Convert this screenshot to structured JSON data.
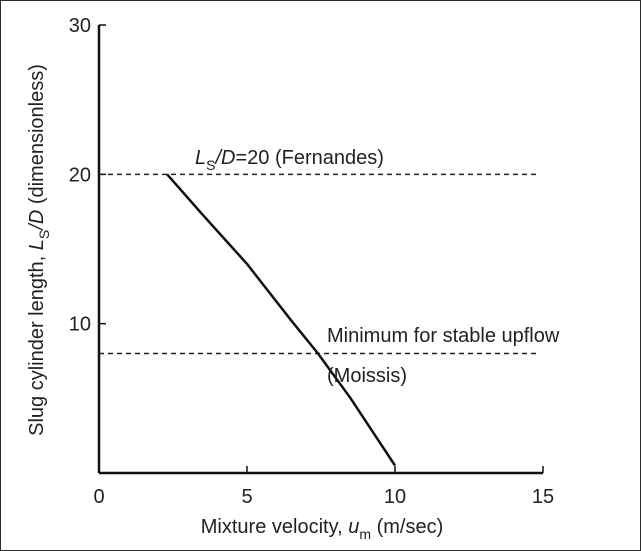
{
  "chart_data": {
    "type": "line",
    "xlabel": {
      "prefix": "Mixture velocity, ",
      "symbol": "u",
      "sub": "m",
      "suffix": " (m/sec)"
    },
    "ylabel": {
      "prefix": "Slug cylinder length, ",
      "sym1": "L",
      "sub": "S",
      "sym2": "/D",
      "suffix": " (dimensionless)"
    },
    "xlim": [
      0,
      15
    ],
    "ylim": [
      0,
      30
    ],
    "xticks": [
      0,
      5,
      10,
      15
    ],
    "yticks": [
      10,
      20,
      30
    ],
    "grid": false,
    "series": [
      {
        "x": [
          2.3,
          3.5,
          5.0,
          6.5,
          7.4,
          8.5,
          9.3,
          10.0
        ],
        "y": [
          20.0,
          17.3,
          14.0,
          10.2,
          8.0,
          5.0,
          2.6,
          0.5
        ]
      }
    ],
    "reference_lines": [
      {
        "y": 20,
        "style": "dashed",
        "label": {
          "sym1": "L",
          "sub": "S",
          "sym2": "/D",
          "rest": "=20 (Fernandes)"
        }
      },
      {
        "y": 8,
        "style": "dashed",
        "label": {
          "line1": "Minimum for stable upflow",
          "line2": "(Moissis)"
        }
      }
    ]
  }
}
